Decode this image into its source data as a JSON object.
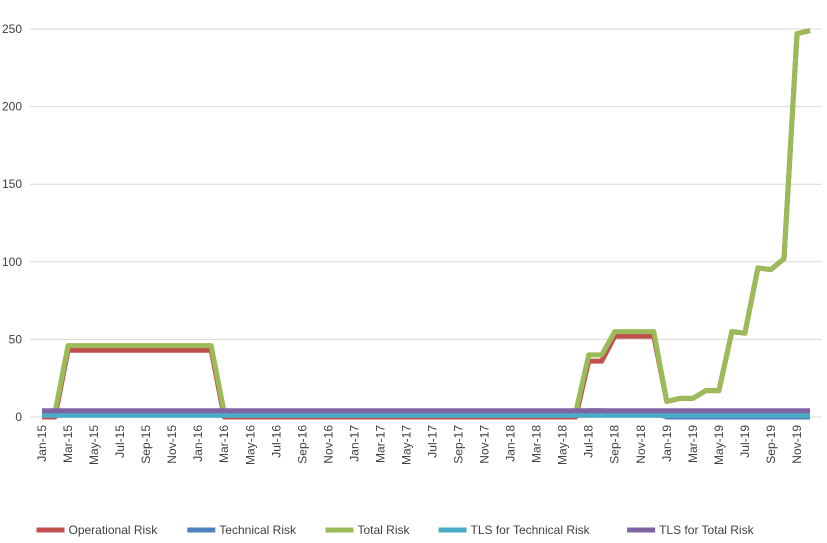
{
  "chart_data": {
    "type": "line",
    "categories": [
      "Jan-15",
      null,
      "Mar-15",
      null,
      "May-15",
      null,
      "Jul-15",
      null,
      "Sep-15",
      null,
      "Nov-15",
      null,
      "Jan-16",
      null,
      "Mar-16",
      null,
      "May-16",
      null,
      "Jul-16",
      null,
      "Sep-16",
      null,
      "Nov-16",
      null,
      "Jan-17",
      null,
      "Mar-17",
      null,
      "May-17",
      null,
      "Jul-17",
      null,
      "Sep-17",
      null,
      "Nov-17",
      null,
      "Jan-18",
      null,
      "Mar-18",
      null,
      "May-18",
      null,
      "Jul-18",
      null,
      "Sep-18",
      null,
      "Nov-18",
      null,
      "Jan-19",
      null,
      "Mar-19",
      null,
      "May-19",
      null,
      "Jul-19",
      null,
      "Sep-19",
      null,
      "Nov-19",
      null
    ],
    "series": [
      {
        "name": "Operational Risk",
        "color": "#c0504d",
        "values": [
          0,
          0,
          43,
          43,
          43,
          43,
          43,
          43,
          43,
          43,
          43,
          43,
          43,
          43,
          0,
          0,
          0,
          0,
          0,
          0,
          0,
          0,
          0,
          0,
          0,
          0,
          0,
          0,
          0,
          0,
          0,
          0,
          0,
          0,
          0,
          0,
          0,
          0,
          0,
          0,
          0,
          0,
          36,
          36,
          52,
          52,
          52,
          52,
          10,
          12,
          12,
          17,
          17,
          55,
          54,
          96,
          95,
          102,
          247,
          249
        ]
      },
      {
        "name": "Technical Risk",
        "color": "#4f81bd",
        "values": [
          3,
          3,
          3,
          3,
          3,
          3,
          3,
          3,
          3,
          3,
          3,
          3,
          3,
          3,
          3,
          3,
          3,
          3,
          3,
          3,
          3,
          3,
          3,
          3,
          3,
          3,
          3,
          3,
          3,
          3,
          3,
          3,
          3,
          3,
          3,
          3,
          3,
          3,
          3,
          3,
          3,
          3,
          4,
          4,
          3,
          3,
          3,
          3,
          0,
          0,
          0,
          0,
          0,
          0,
          0,
          0,
          0,
          0,
          0,
          0
        ]
      },
      {
        "name": "Total Risk",
        "color": "#9bbb59",
        "values": [
          3,
          3,
          46,
          46,
          46,
          46,
          46,
          46,
          46,
          46,
          46,
          46,
          46,
          46,
          3,
          3,
          3,
          3,
          3,
          3,
          3,
          3,
          3,
          3,
          3,
          3,
          3,
          3,
          3,
          3,
          3,
          3,
          3,
          3,
          3,
          3,
          3,
          3,
          3,
          3,
          3,
          3,
          40,
          40,
          55,
          55,
          55,
          55,
          10,
          12,
          12,
          17,
          17,
          55,
          54,
          96,
          95,
          102,
          247,
          249
        ]
      },
      {
        "name": "TLS for Technical Risk",
        "color": "#4bacc6",
        "values": [
          1,
          1,
          1,
          1,
          1,
          1,
          1,
          1,
          1,
          1,
          1,
          1,
          1,
          1,
          1,
          1,
          1,
          1,
          1,
          1,
          1,
          1,
          1,
          1,
          1,
          1,
          1,
          1,
          1,
          1,
          1,
          1,
          1,
          1,
          1,
          1,
          1,
          1,
          1,
          1,
          1,
          1,
          1,
          1,
          1,
          1,
          1,
          1,
          1,
          1,
          1,
          1,
          1,
          1,
          1,
          1,
          1,
          1,
          1,
          1
        ]
      },
      {
        "name": "TLS for Total Risk",
        "color": "#8064a2",
        "values": [
          4,
          4,
          4,
          4,
          4,
          4,
          4,
          4,
          4,
          4,
          4,
          4,
          4,
          4,
          4,
          4,
          4,
          4,
          4,
          4,
          4,
          4,
          4,
          4,
          4,
          4,
          4,
          4,
          4,
          4,
          4,
          4,
          4,
          4,
          4,
          4,
          4,
          4,
          4,
          4,
          4,
          4,
          4,
          4,
          4,
          4,
          4,
          4,
          4,
          4,
          4,
          4,
          4,
          4,
          4,
          4,
          4,
          4,
          4,
          4
        ]
      }
    ],
    "ylim": [
      0,
      250
    ],
    "yticks": [
      0,
      50,
      100,
      150,
      200,
      250
    ],
    "grid": true
  }
}
